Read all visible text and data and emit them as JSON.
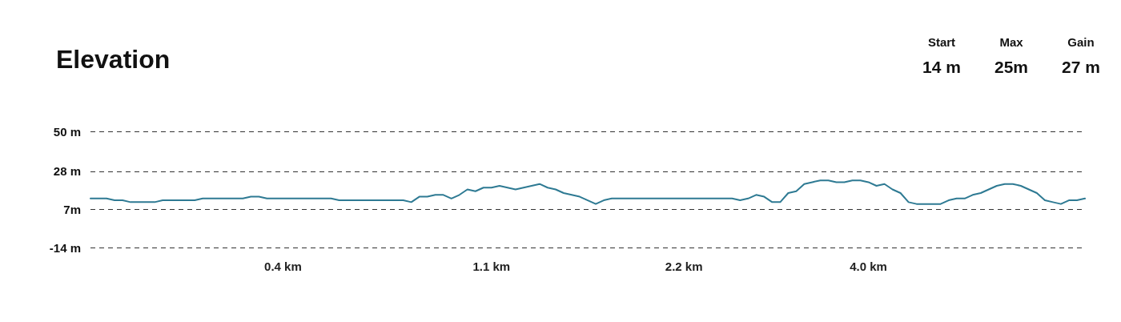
{
  "chart_data": {
    "type": "line",
    "title": "Elevation",
    "annotations": [
      "Start",
      "14 m",
      "Max",
      "25m",
      "Gain",
      "27 m"
    ],
    "categories": [
      null,
      null,
      null,
      null,
      null,
      null,
      null,
      null,
      null,
      null,
      null,
      null,
      null,
      null,
      null,
      null,
      null,
      null,
      null,
      null,
      null,
      null,
      null,
      null,
      "0.4 km",
      null,
      null,
      null,
      null,
      null,
      null,
      null,
      null,
      null,
      null,
      null,
      null,
      null,
      null,
      null,
      null,
      null,
      null,
      null,
      null,
      null,
      null,
      null,
      null,
      null,
      "1.1 km",
      null,
      null,
      null,
      null,
      null,
      null,
      null,
      null,
      null,
      null,
      null,
      null,
      null,
      null,
      null,
      null,
      null,
      null,
      null,
      null,
      null,
      null,
      null,
      "2.2 km",
      null,
      null,
      null,
      null,
      null,
      null,
      null,
      null,
      null,
      null,
      null,
      null,
      null,
      null,
      null,
      null,
      null,
      null,
      null,
      null,
      null,
      null,
      "4.0 km",
      null,
      null,
      null,
      null,
      null,
      null,
      null,
      null,
      null,
      null,
      null,
      null,
      null,
      null,
      null,
      null,
      null,
      null,
      null,
      null,
      null,
      null,
      null,
      null,
      null,
      null,
      null
    ],
    "series": [
      {
        "color": "#2e7a93",
        "values": [
          13,
          13,
          13,
          12,
          12,
          11,
          11,
          11,
          11,
          12,
          12,
          12,
          12,
          12,
          13,
          13,
          13,
          13,
          13,
          13,
          14,
          14,
          13,
          13,
          13,
          13,
          13,
          13,
          13,
          13,
          13,
          12,
          12,
          12,
          12,
          12,
          12,
          12,
          12,
          12,
          11,
          14,
          14,
          15,
          15,
          13,
          15,
          18,
          17,
          19,
          19,
          20,
          19,
          18,
          19,
          20,
          21,
          19,
          18,
          16,
          15,
          14,
          12,
          10,
          12,
          13,
          13,
          13,
          13,
          13,
          13,
          13,
          13,
          13,
          13,
          13,
          13,
          13,
          13,
          13,
          13,
          12,
          13,
          15,
          14,
          11,
          11,
          16,
          17,
          21,
          22,
          23,
          23,
          22,
          22,
          23,
          23,
          22,
          20,
          21,
          18,
          16,
          11,
          10,
          10,
          10,
          10,
          12,
          13,
          13,
          15,
          16,
          18,
          20,
          21,
          21,
          20,
          18,
          16,
          12,
          11,
          10,
          12,
          12,
          13
        ]
      }
    ],
    "ylim": [
      -14,
      50
    ],
    "yticks": [
      {
        "value": -14,
        "label": "-14 m"
      },
      {
        "value": 7,
        "label": "7m"
      },
      {
        "value": 28,
        "label": "28 m"
      },
      {
        "value": 50,
        "label": "50 m"
      }
    ],
    "grid": "y",
    "marker": "none",
    "line_style": "solid"
  }
}
